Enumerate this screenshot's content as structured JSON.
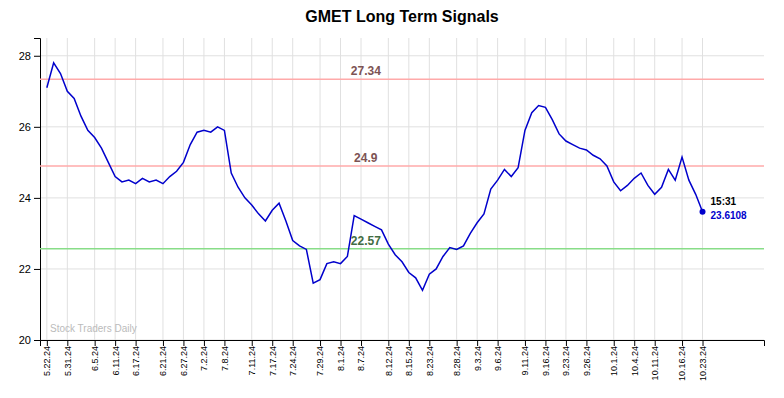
{
  "chart_data": {
    "type": "line",
    "title": "GMET Long Term Signals",
    "color": "#0000cc",
    "grid": true,
    "ylim": [
      20,
      28.5
    ],
    "yticks": [
      20,
      22,
      24,
      26,
      28
    ],
    "hlines": [
      {
        "value": 27.34,
        "color": "#ffaaaa"
      },
      {
        "value": 24.9,
        "color": "#ffaaaa"
      },
      {
        "value": 22.57,
        "color": "#88dd88"
      }
    ],
    "last_label": "15:31",
    "watermark": "Stock Traders Daily",
    "categories": [
      "5.22.24",
      null,
      null,
      "5.31.24",
      null,
      null,
      null,
      "6.5.24",
      null,
      null,
      "6.11.24",
      null,
      null,
      "6.17.24",
      null,
      null,
      null,
      "6.21.24",
      null,
      null,
      "6.27.24",
      null,
      null,
      "7.2.24",
      null,
      null,
      "7.8.24",
      null,
      null,
      null,
      "7.11.24",
      null,
      null,
      "7.17.24",
      null,
      null,
      "7.24.24",
      null,
      null,
      null,
      "7.29.24",
      null,
      null,
      "8.1.24",
      null,
      null,
      "8.7.24",
      null,
      null,
      null,
      "8.12.24",
      null,
      null,
      "8.15.24",
      null,
      null,
      "8.23.24",
      null,
      null,
      null,
      "8.28.24",
      null,
      null,
      "9.3.24",
      null,
      null,
      "9.6.24",
      null,
      null,
      null,
      "9.11.24",
      null,
      null,
      "9.16.24",
      null,
      null,
      "9.23.24",
      null,
      null,
      "9.26.24",
      null,
      null,
      null,
      "10.1.24",
      null,
      null,
      "10.4.24",
      null,
      null,
      "10.11.24",
      null,
      null,
      null,
      "10.16.24",
      null,
      null,
      "10.23.24"
    ],
    "values": [
      27.1,
      27.8,
      27.5,
      27.0,
      26.8,
      26.3,
      25.9,
      25.7,
      25.4,
      25.0,
      24.6,
      24.45,
      24.5,
      24.4,
      24.55,
      24.45,
      24.5,
      24.4,
      24.6,
      24.75,
      25.0,
      25.5,
      25.85,
      25.9,
      25.85,
      26.0,
      25.9,
      24.7,
      24.3,
      24.0,
      23.8,
      23.55,
      23.35,
      23.65,
      23.85,
      23.35,
      22.8,
      22.65,
      22.55,
      21.6,
      21.7,
      22.15,
      22.2,
      22.15,
      22.35,
      23.5,
      23.4,
      23.3,
      23.2,
      23.1,
      22.7,
      22.4,
      22.2,
      21.9,
      21.75,
      21.4,
      21.85,
      22.0,
      22.35,
      22.6,
      22.55,
      22.65,
      23.0,
      23.3,
      23.55,
      24.25,
      24.5,
      24.8,
      24.6,
      24.85,
      25.9,
      26.4,
      26.6,
      26.55,
      26.2,
      25.8,
      25.6,
      25.5,
      25.4,
      25.35,
      25.2,
      25.1,
      24.9,
      24.45,
      24.2,
      24.35,
      24.55,
      24.7,
      24.35,
      24.1,
      24.3,
      24.8,
      24.5,
      25.15,
      24.5,
      24.1,
      23.6108
    ]
  }
}
